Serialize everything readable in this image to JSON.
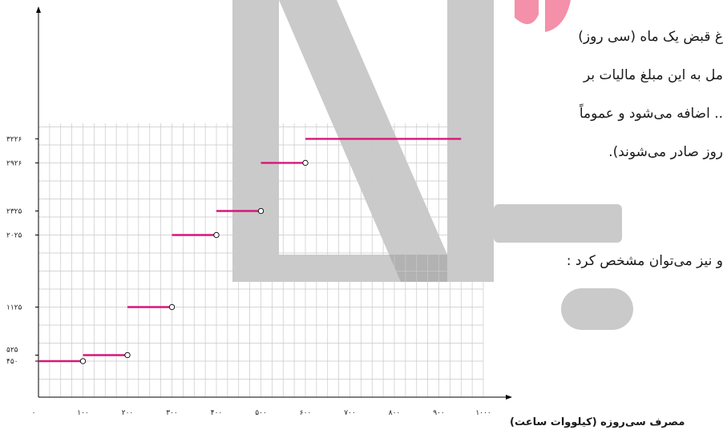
{
  "page": {
    "text_lines": [
      "غ قبض یک ماه (سی روز)",
      "مل به این مبلغ مالیات بر",
      ".. اضافه می‌شود و عموماً",
      "روز صادر می‌شوند).",
      "و نیز می‌توان مشخص کرد :"
    ]
  },
  "watermark": {
    "color": "#9e9e9e",
    "accent": "#f06b8c"
  },
  "chart_data": {
    "type": "step",
    "xlabel": "مصرف سی‌روزه (کیلووات ساعت)",
    "origin_label": "۰",
    "xlim": [
      0,
      1000
    ],
    "ylim": [
      0,
      3600
    ],
    "xticks": [
      100,
      200,
      300,
      400,
      500,
      600,
      700,
      800,
      900,
      1000
    ],
    "xtick_labels": [
      "۱۰۰",
      "۲۰۰",
      "۳۰۰",
      "۴۰۰",
      "۵۰۰",
      "۶۰۰",
      "۷۰۰",
      "۸۰۰",
      "۹۰۰",
      "۱۰۰۰"
    ],
    "yticks": [
      450,
      525,
      1125,
      2025,
      2325,
      2926,
      3226
    ],
    "ytick_labels": [
      "۴۵۰",
      "۵۲۵",
      "۱۱۲۵",
      "۲۰۲۵",
      "۲۳۲۵",
      "۲۹۲۶",
      "۳۲۲۶"
    ],
    "segments": [
      {
        "x0": 0,
        "x1": 100,
        "y": 450,
        "open_end": true
      },
      {
        "x0": 100,
        "x1": 200,
        "y": 525,
        "open_end": true
      },
      {
        "x0": 200,
        "x1": 300,
        "y": 1125,
        "open_end": true
      },
      {
        "x0": 300,
        "x1": 400,
        "y": 2025,
        "open_end": true
      },
      {
        "x0": 400,
        "x1": 500,
        "y": 2325,
        "open_end": true
      },
      {
        "x0": 500,
        "x1": 600,
        "y": 2926,
        "open_end": true
      },
      {
        "x0": 600,
        "x1": 950,
        "y": 3226,
        "open_end": false
      }
    ],
    "grid": true,
    "line_color": "#d6177a"
  }
}
